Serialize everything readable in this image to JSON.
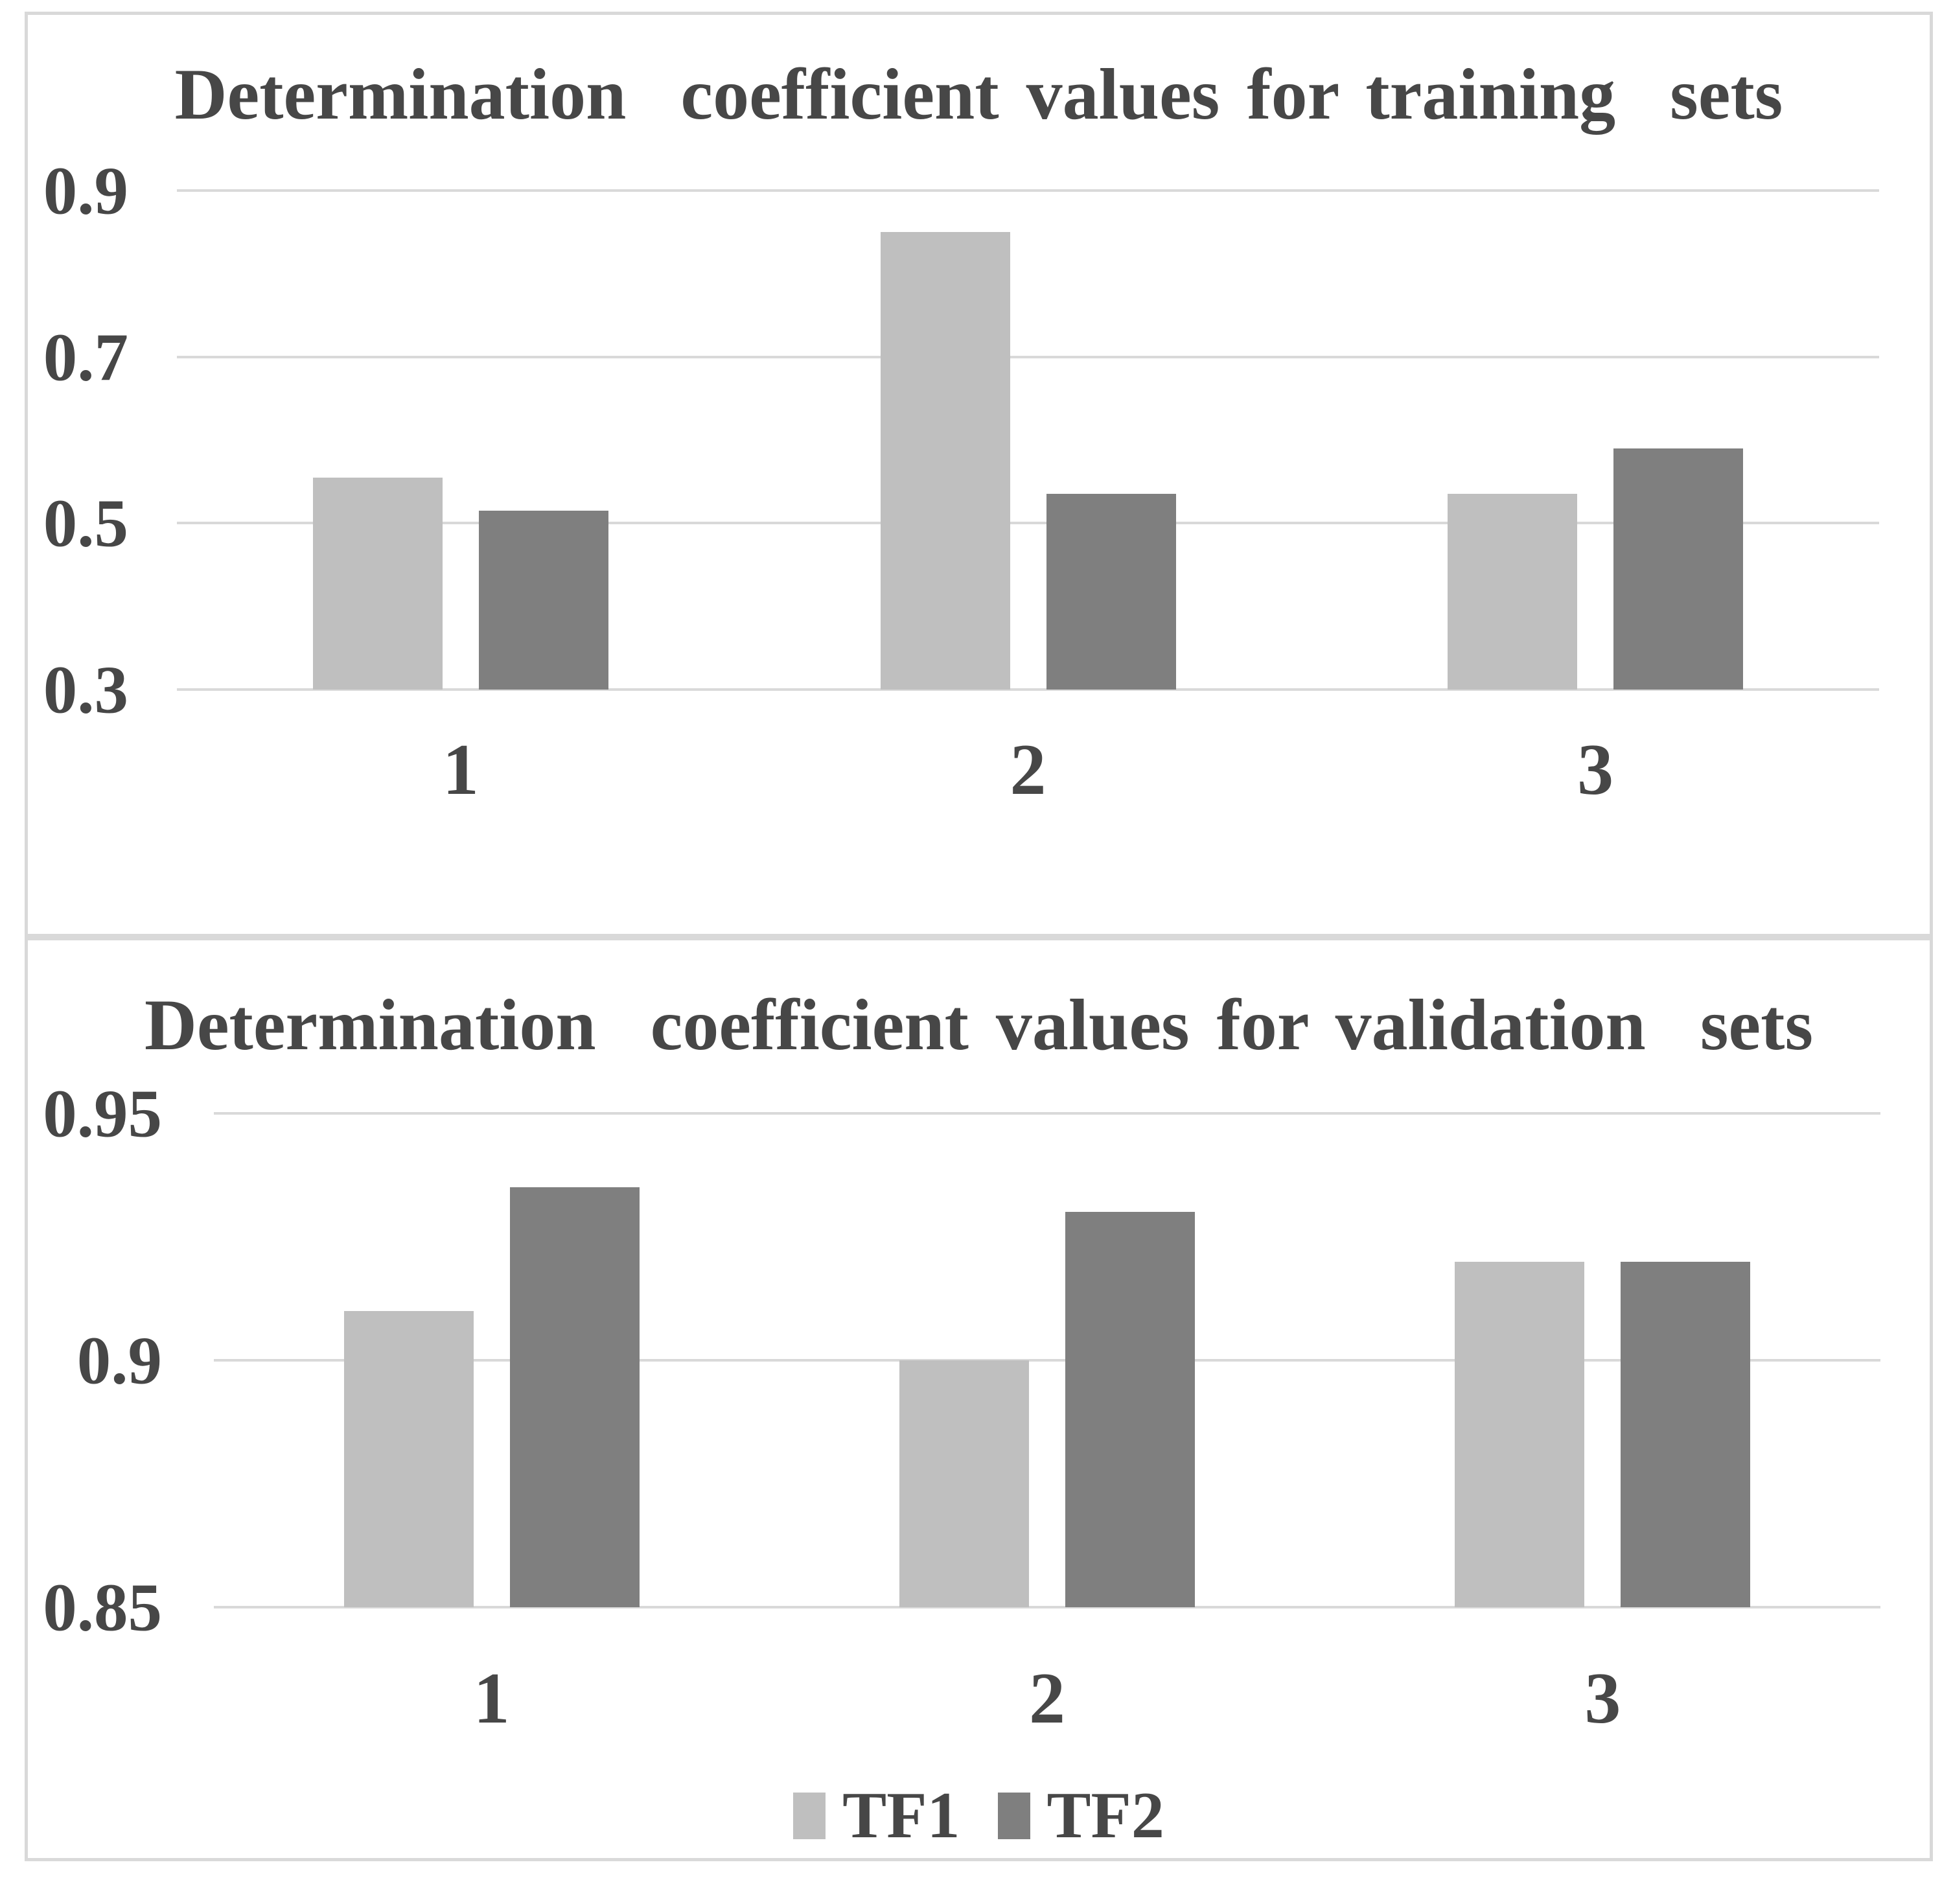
{
  "page": {
    "background": "#ffffff",
    "panel_border_color": "#d9d9d9",
    "gridline_color": "#d9d9d9",
    "text_color": "#474747"
  },
  "series_colors": {
    "TF1": "#bfbfbf",
    "TF2": "#7f7f7f"
  },
  "legend": {
    "position": "bottom-of-second-chart",
    "items": [
      {
        "label": "TF1",
        "color": "#bfbfbf"
      },
      {
        "label": "TF2",
        "color": "#7f7f7f"
      }
    ]
  },
  "chart_data": [
    {
      "type": "bar",
      "title": "Determination  coefficient values for training  sets",
      "categories": [
        "1",
        "2",
        "3"
      ],
      "series": [
        {
          "name": "TF1",
          "values": [
            0.555,
            0.85,
            0.535
          ]
        },
        {
          "name": "TF2",
          "values": [
            0.515,
            0.535,
            0.59
          ]
        }
      ],
      "xlabel": "",
      "ylabel": "",
      "ylim": [
        0.3,
        0.9
      ],
      "yticks": [
        {
          "value": 0.9,
          "label": "0.9"
        },
        {
          "value": 0.7,
          "label": "0.7"
        },
        {
          "value": 0.5,
          "label": "0.5"
        },
        {
          "value": 0.3,
          "label": "0.3"
        }
      ],
      "grid": true,
      "legend_position": "none"
    },
    {
      "type": "bar",
      "title": "Determination  coefficient values for validation  sets",
      "categories": [
        "1",
        "2",
        "3"
      ],
      "series": [
        {
          "name": "TF1",
          "values": [
            0.91,
            0.9,
            0.92
          ]
        },
        {
          "name": "TF2",
          "values": [
            0.935,
            0.93,
            0.92
          ]
        }
      ],
      "xlabel": "",
      "ylabel": "",
      "ylim": [
        0.85,
        0.95
      ],
      "yticks": [
        {
          "value": 0.95,
          "label": "0.95"
        },
        {
          "value": 0.9,
          "label": "0.9"
        },
        {
          "value": 0.85,
          "label": "0.85"
        }
      ],
      "grid": true,
      "legend_position": "bottom"
    }
  ]
}
